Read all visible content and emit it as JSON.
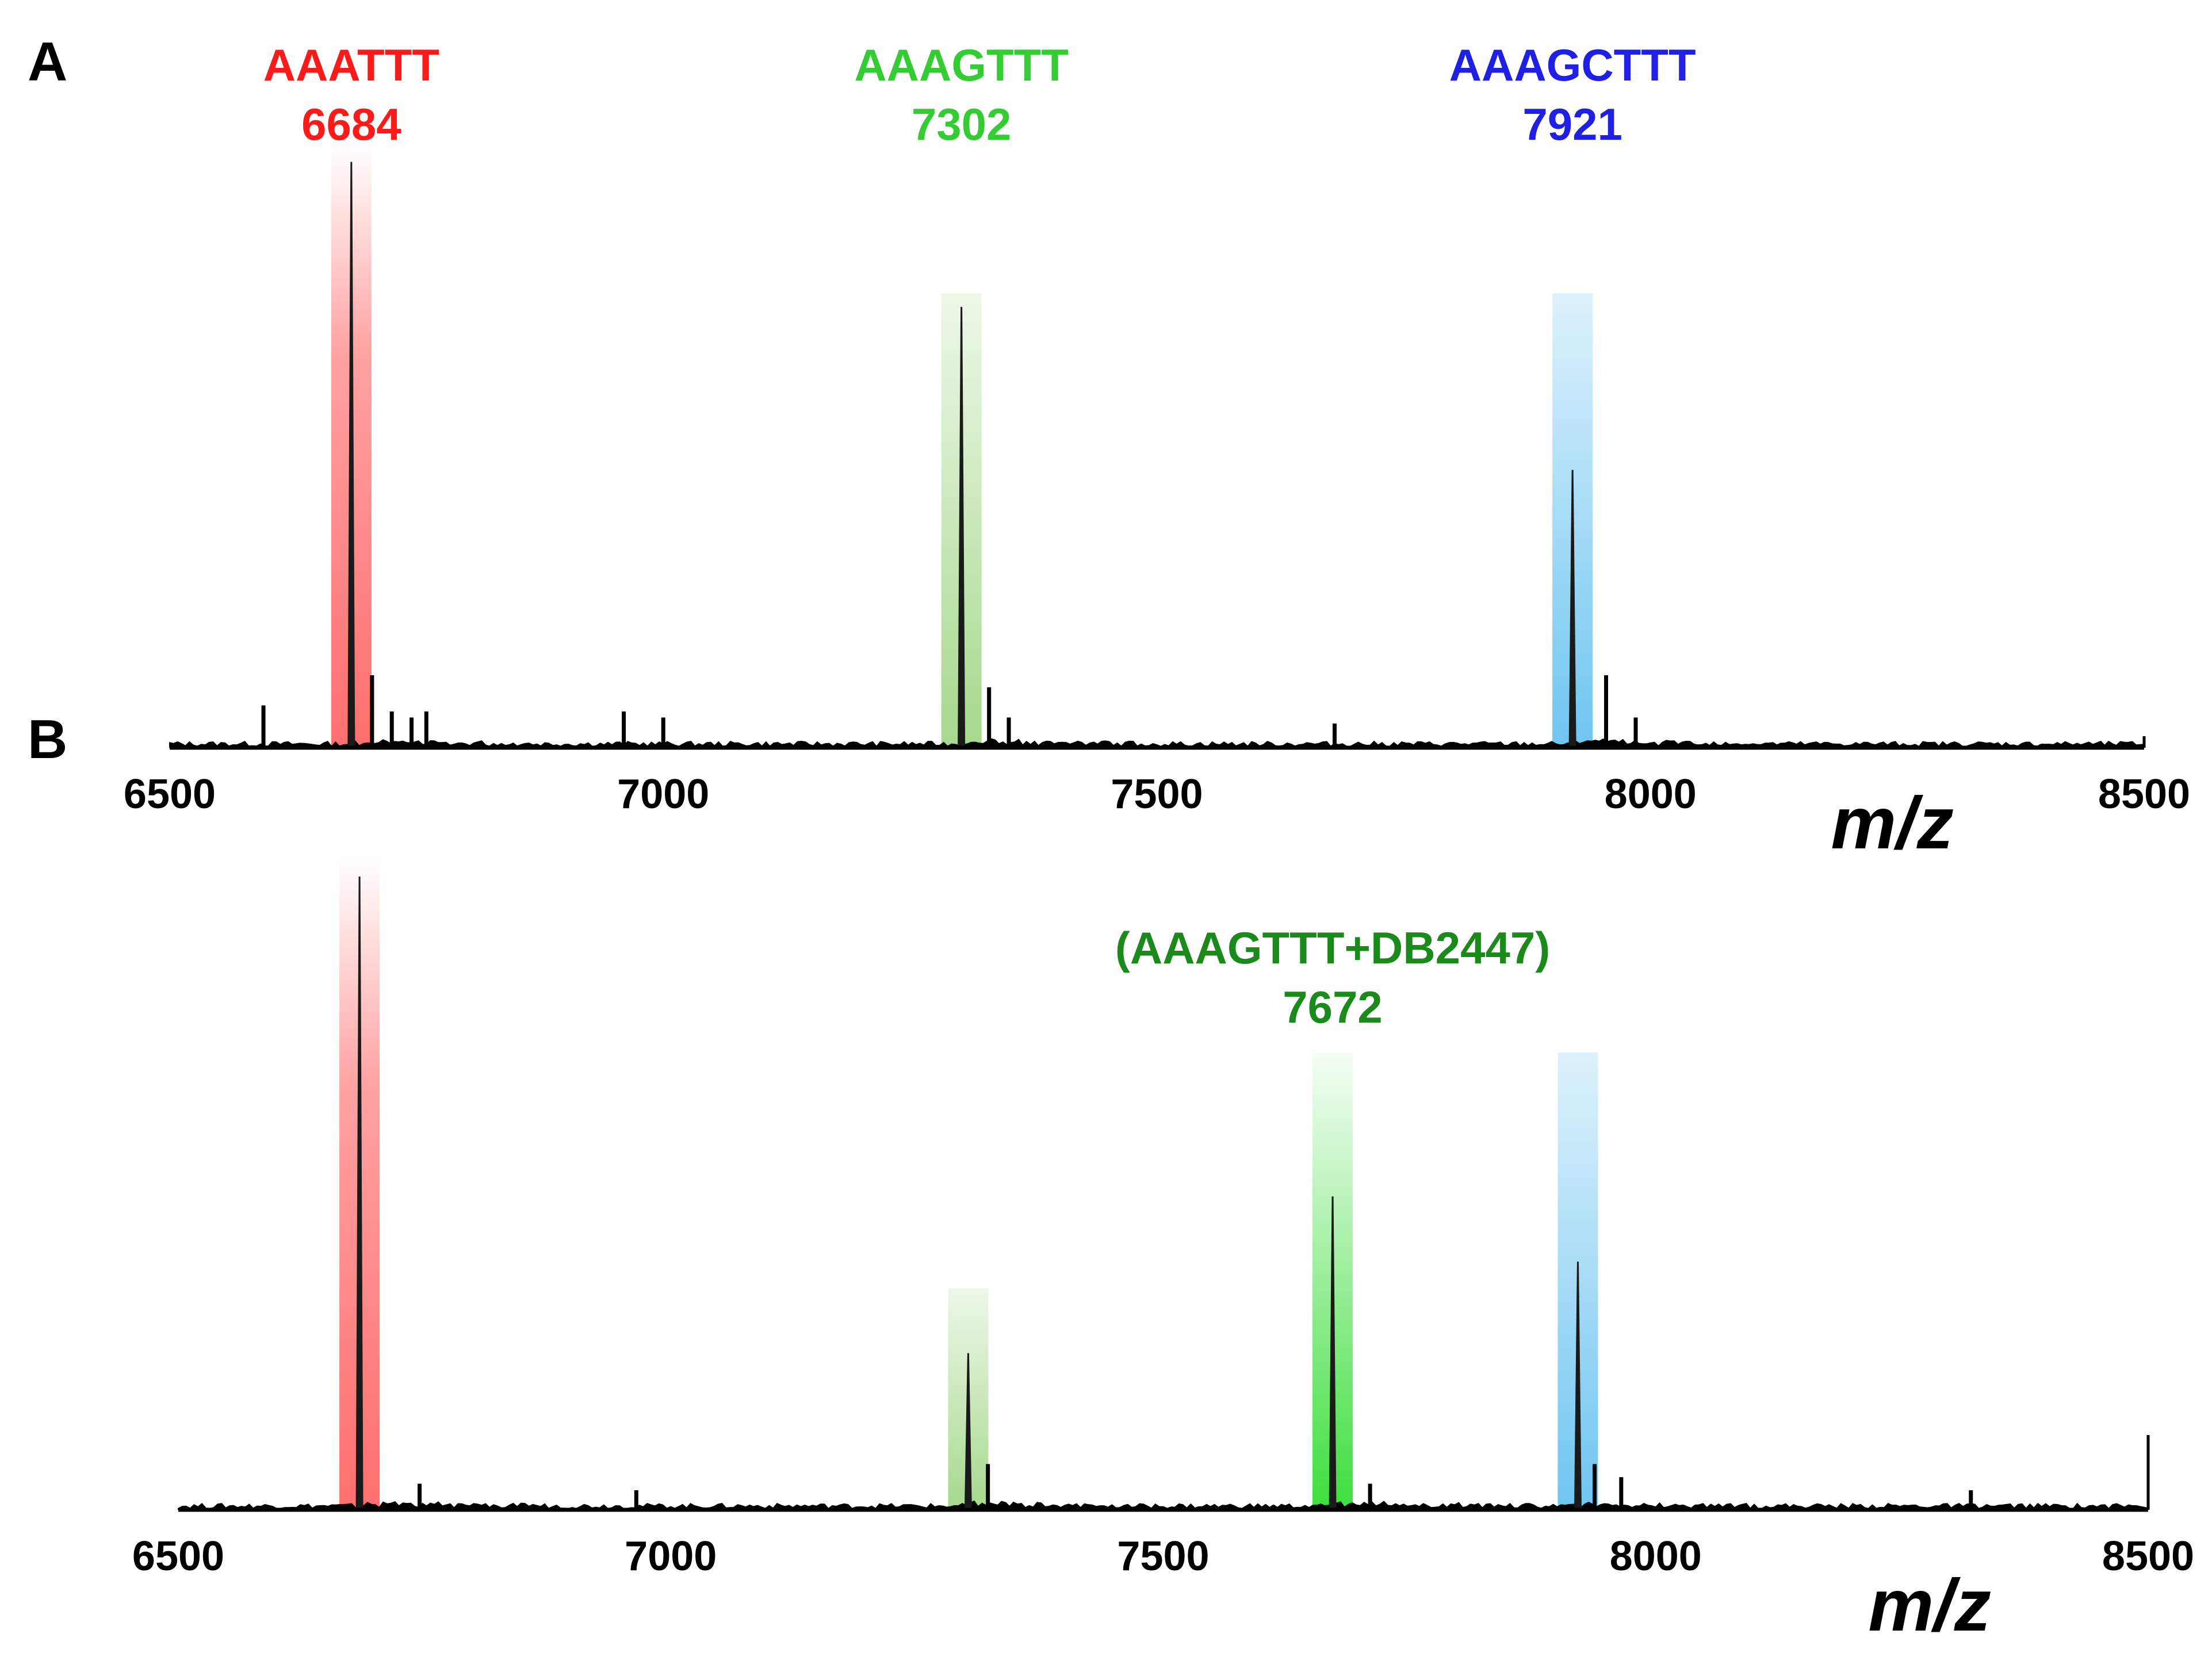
{
  "figure": {
    "panel_labels": [
      "A",
      "B"
    ]
  },
  "colors": {
    "AAATTT": "#ff1a1a",
    "AAAGTTT": "#33cc33",
    "AAAGCTTT": "#1f1fe6",
    "complex": "#1a8a1a",
    "red_band": "#ff5555",
    "green_band": "#88cc66",
    "bright_green_band": "#33dd33",
    "blue_band": "#55bbee",
    "trace": "#000000"
  },
  "chart_data": [
    {
      "type": "line",
      "panel": "A",
      "title": "",
      "xlabel": "m/z",
      "ylabel": "",
      "xlim": [
        6500,
        8500
      ],
      "ylim": [
        0,
        100
      ],
      "x_ticks": [
        "6500",
        "7000",
        "7500",
        "8000",
        "8500"
      ],
      "grid": false,
      "annotations": [
        {
          "label": "AAATTT",
          "value": "6684",
          "x": 6684,
          "color": "#ff1a1a"
        },
        {
          "label": "AAAGTTT",
          "value": "7302",
          "x": 7302,
          "color": "#33cc33"
        },
        {
          "label": "AAAGCTTT",
          "value": "7921",
          "x": 7921,
          "color": "#1f1fe6"
        }
      ],
      "highlight_bands": [
        {
          "x": 6684,
          "top": 100,
          "color": "#ff5555"
        },
        {
          "x": 7302,
          "top": 76,
          "color": "#88cc66"
        },
        {
          "x": 7921,
          "top": 76,
          "color": "#55bbee"
        }
      ],
      "peaks": [
        {
          "x": 6684,
          "y": 97
        },
        {
          "x": 7302,
          "y": 73
        },
        {
          "x": 7921,
          "y": 46
        }
      ],
      "minor_peaks": [
        {
          "x": 6595,
          "y": 7
        },
        {
          "x": 6705,
          "y": 12
        },
        {
          "x": 6725,
          "y": 6
        },
        {
          "x": 6745,
          "y": 5
        },
        {
          "x": 6760,
          "y": 6
        },
        {
          "x": 6960,
          "y": 6
        },
        {
          "x": 7000,
          "y": 5
        },
        {
          "x": 7330,
          "y": 10
        },
        {
          "x": 7350,
          "y": 5
        },
        {
          "x": 7680,
          "y": 4
        },
        {
          "x": 7955,
          "y": 12
        },
        {
          "x": 7985,
          "y": 5
        }
      ]
    },
    {
      "type": "line",
      "panel": "B",
      "title": "",
      "xlabel": "m/z",
      "ylabel": "",
      "xlim": [
        6500,
        8500
      ],
      "ylim": [
        0,
        100
      ],
      "x_ticks": [
        "6500",
        "7000",
        "7500",
        "8000",
        "8500"
      ],
      "grid": false,
      "annotations": [
        {
          "label": "(AAAGTTT+DB2447)",
          "value": "7672",
          "x": 7672,
          "color": "#1a8a1a"
        }
      ],
      "highlight_bands": [
        {
          "x": 6684,
          "top": 100,
          "color": "#ff5555"
        },
        {
          "x": 7302,
          "top": 33,
          "color": "#88cc66"
        },
        {
          "x": 7672,
          "top": 66,
          "color": "#33dd33"
        },
        {
          "x": 7921,
          "top": 66,
          "color": "#55bbee"
        }
      ],
      "peaks": [
        {
          "x": 6684,
          "y": 97
        },
        {
          "x": 7302,
          "y": 24
        },
        {
          "x": 7672,
          "y": 48
        },
        {
          "x": 7921,
          "y": 38
        }
      ],
      "minor_peaks": [
        {
          "x": 6745,
          "y": 4
        },
        {
          "x": 6965,
          "y": 3
        },
        {
          "x": 7322,
          "y": 7
        },
        {
          "x": 7710,
          "y": 4
        },
        {
          "x": 7938,
          "y": 7
        },
        {
          "x": 7965,
          "y": 5
        },
        {
          "x": 8320,
          "y": 3
        }
      ]
    }
  ]
}
